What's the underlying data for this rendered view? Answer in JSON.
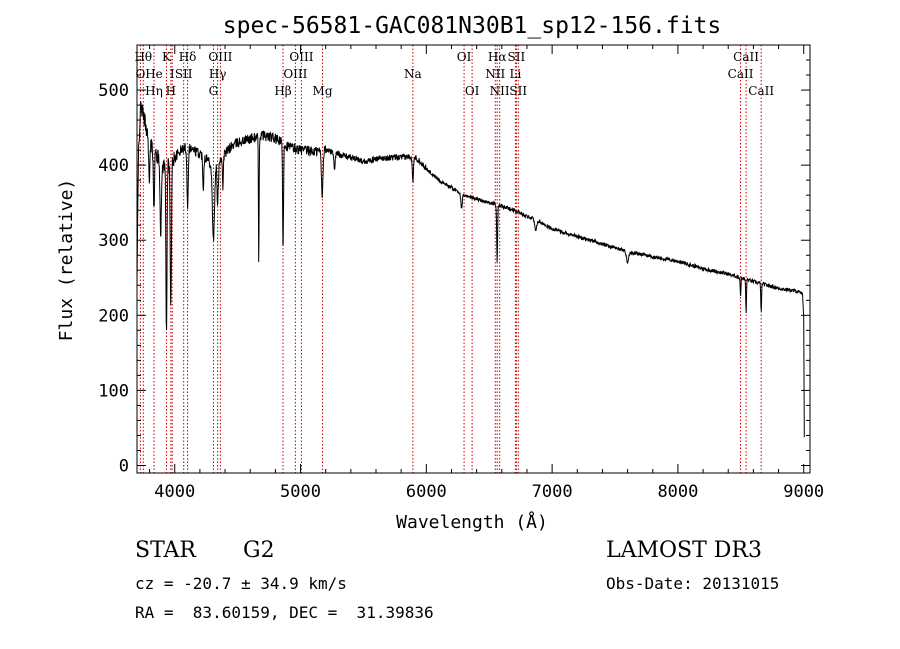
{
  "chart_data": {
    "type": "line",
    "title": "spec-56581-GAC081N30B1_sp12-156.fits",
    "xlabel": "Wavelength (Å)",
    "ylabel": "Flux (relative)",
    "xlim": [
      3700,
      9050
    ],
    "ylim": [
      -10,
      560
    ],
    "xticks": [
      4000,
      5000,
      6000,
      7000,
      8000,
      9000
    ],
    "yticks": [
      0,
      100,
      200,
      300,
      400,
      500
    ],
    "continuum": [
      [
        3700,
        240
      ],
      [
        3712,
        420
      ],
      [
        3730,
        480
      ],
      [
        3760,
        460
      ],
      [
        3800,
        430
      ],
      [
        3850,
        415
      ],
      [
        3900,
        400
      ],
      [
        3950,
        400
      ],
      [
        4000,
        410
      ],
      [
        4050,
        420
      ],
      [
        4100,
        425
      ],
      [
        4150,
        420
      ],
      [
        4200,
        415
      ],
      [
        4250,
        410
      ],
      [
        4300,
        400
      ],
      [
        4350,
        405
      ],
      [
        4400,
        415
      ],
      [
        4450,
        425
      ],
      [
        4500,
        430
      ],
      [
        4600,
        435
      ],
      [
        4700,
        440
      ],
      [
        4800,
        435
      ],
      [
        4900,
        425
      ],
      [
        5000,
        420
      ],
      [
        5100,
        418
      ],
      [
        5200,
        420
      ],
      [
        5300,
        415
      ],
      [
        5400,
        410
      ],
      [
        5500,
        405
      ],
      [
        5600,
        408
      ],
      [
        5700,
        410
      ],
      [
        5800,
        410
      ],
      [
        5900,
        412
      ],
      [
        5950,
        405
      ],
      [
        6000,
        395
      ],
      [
        6100,
        380
      ],
      [
        6200,
        370
      ],
      [
        6300,
        360
      ],
      [
        6400,
        355
      ],
      [
        6500,
        350
      ],
      [
        6600,
        345
      ],
      [
        6700,
        340
      ],
      [
        6800,
        332
      ],
      [
        6900,
        325
      ],
      [
        7000,
        315
      ],
      [
        7200,
        305
      ],
      [
        7400,
        295
      ],
      [
        7600,
        285
      ],
      [
        7800,
        278
      ],
      [
        8000,
        272
      ],
      [
        8200,
        262
      ],
      [
        8400,
        255
      ],
      [
        8600,
        245
      ],
      [
        8800,
        236
      ],
      [
        8950,
        232
      ],
      [
        8990,
        228
      ],
      [
        9000,
        200
      ],
      [
        9005,
        40
      ]
    ],
    "absorption_lines": [
      {
        "center": 3798,
        "depth": 60,
        "width": 6
      },
      {
        "center": 3835,
        "depth": 80,
        "width": 6
      },
      {
        "center": 3889,
        "depth": 100,
        "width": 7
      },
      {
        "center": 3934,
        "depth": 220,
        "width": 6
      },
      {
        "center": 3969,
        "depth": 190,
        "width": 7
      },
      {
        "center": 4102,
        "depth": 80,
        "width": 7
      },
      {
        "center": 4227,
        "depth": 40,
        "width": 6
      },
      {
        "center": 4308,
        "depth": 100,
        "width": 12
      },
      {
        "center": 4341,
        "depth": 60,
        "width": 7
      },
      {
        "center": 4383,
        "depth": 40,
        "width": 5
      },
      {
        "center": 4668,
        "depth": 170,
        "width": 4
      },
      {
        "center": 4861,
        "depth": 140,
        "width": 5
      },
      {
        "center": 5172,
        "depth": 60,
        "width": 8
      },
      {
        "center": 5270,
        "depth": 25,
        "width": 6
      },
      {
        "center": 5893,
        "depth": 35,
        "width": 6
      },
      {
        "center": 6280,
        "depth": 20,
        "width": 8
      },
      {
        "center": 6563,
        "depth": 75,
        "width": 5
      },
      {
        "center": 6870,
        "depth": 15,
        "width": 10
      },
      {
        "center": 7600,
        "depth": 15,
        "width": 12
      },
      {
        "center": 8498,
        "depth": 25,
        "width": 4
      },
      {
        "center": 8542,
        "depth": 45,
        "width": 4
      },
      {
        "center": 8662,
        "depth": 40,
        "width": 4
      }
    ],
    "spectral_lines": [
      {
        "name": "O",
        "wavelength": 3727,
        "row": 2
      },
      {
        "name": "Hθ",
        "wavelength": 3750,
        "row": 1
      },
      {
        "name": "He",
        "wavelength": 3835,
        "row": 2
      },
      {
        "name": "Hη",
        "wavelength": 3835,
        "row": 3
      },
      {
        "name": "K",
        "wavelength": 3934,
        "row": 1
      },
      {
        "name": "H",
        "wavelength": 3969,
        "row": 3
      },
      {
        "name": "I",
        "wavelength": 3980,
        "row": 2
      },
      {
        "name": "SII",
        "wavelength": 4071,
        "row": 2
      },
      {
        "name": "Hδ",
        "wavelength": 4102,
        "row": 1
      },
      {
        "name": "OIII",
        "wavelength": 4363,
        "row": 1
      },
      {
        "name": "Hγ",
        "wavelength": 4341,
        "row": 2
      },
      {
        "name": "G",
        "wavelength": 4308,
        "row": 3
      },
      {
        "name": "Hβ",
        "wavelength": 4861,
        "row": 3
      },
      {
        "name": "OIII",
        "wavelength": 4959,
        "row": 2
      },
      {
        "name": "OIII",
        "wavelength": 5007,
        "row": 1
      },
      {
        "name": "Mg",
        "wavelength": 5175,
        "row": 3
      },
      {
        "name": "Na",
        "wavelength": 5893,
        "row": 2
      },
      {
        "name": "OI",
        "wavelength": 6300,
        "row": 1
      },
      {
        "name": "OI",
        "wavelength": 6364,
        "row": 3
      },
      {
        "name": "Hα",
        "wavelength": 6563,
        "row": 1
      },
      {
        "name": "NII",
        "wavelength": 6548,
        "row": 2
      },
      {
        "name": "NII",
        "wavelength": 6583,
        "row": 3
      },
      {
        "name": "SII",
        "wavelength": 6716,
        "row": 1
      },
      {
        "name": "Li",
        "wavelength": 6708,
        "row": 2
      },
      {
        "name": "SII",
        "wavelength": 6731,
        "row": 3
      },
      {
        "name": "CaII",
        "wavelength": 8542,
        "row": 1
      },
      {
        "name": "CaII",
        "wavelength": 8498,
        "row": 2
      },
      {
        "name": "CaII",
        "wavelength": 8662,
        "row": 3
      }
    ],
    "marker_color": "#cc0000",
    "line_color": "#000000"
  },
  "info": {
    "class": "STAR",
    "subclass": "G2",
    "survey": "LAMOST DR3",
    "redshift": "cz = -20.7 ± 34.9 km/s",
    "obs_date": "Obs-Date: 20131015",
    "coords": "RA =  83.60159, DEC =  31.39836"
  }
}
